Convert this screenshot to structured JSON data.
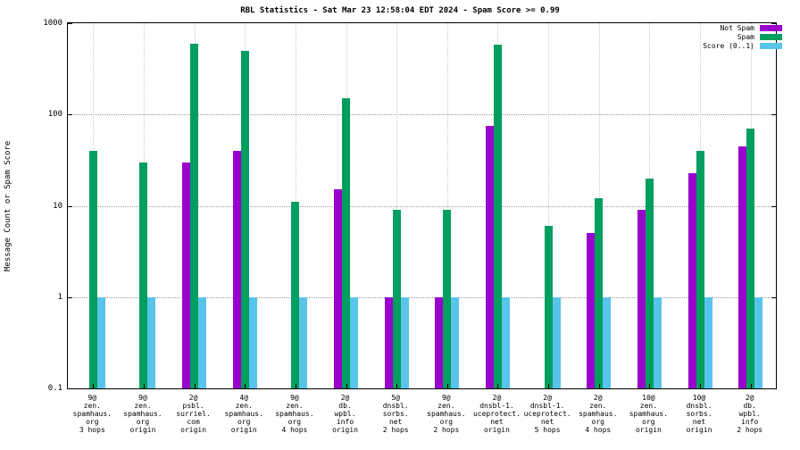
{
  "chart_data": {
    "type": "bar",
    "title": "RBL Statistics - Sat Mar 23 12:58:04 EDT 2024 - Spam Score >= 0.99",
    "ylabel": "Message Count or Spam Score",
    "xlabel": "",
    "y_scale": "log",
    "ylim": [
      0.1,
      1000
    ],
    "yticks": [
      1000,
      100,
      10,
      1,
      0.1
    ],
    "grid_y": [
      1,
      10,
      100
    ],
    "grid": true,
    "legend_position": "top-right",
    "categories": [
      [
        "9@",
        "zen.",
        "spamhaus.",
        "org",
        "3 hops"
      ],
      [
        "9@",
        "zen.",
        "spamhaus.",
        "org",
        "origin"
      ],
      [
        "2@",
        "psbl.",
        "surriel.",
        "com",
        "origin"
      ],
      [
        "4@",
        "zen.",
        "spamhaus.",
        "org",
        "origin"
      ],
      [
        "9@",
        "zen.",
        "spamhaus.",
        "org",
        "4 hops"
      ],
      [
        "2@",
        "db.",
        "wpbl.",
        "info",
        "origin"
      ],
      [
        "5@",
        "dnsbl.",
        "sorbs.",
        "net",
        "2 hops"
      ],
      [
        "9@",
        "zen.",
        "spamhaus.",
        "org",
        "2 hops"
      ],
      [
        "2@",
        "dnsbl-1.",
        "uceprotect.",
        "net",
        "origin"
      ],
      [
        "2@",
        "dnsbl-1.",
        "uceprotect.",
        "net",
        "5 hops"
      ],
      [
        "2@",
        "zen.",
        "spamhaus.",
        "org",
        "4 hops"
      ],
      [
        "10@",
        "zen.",
        "spamhaus.",
        "org",
        "origin"
      ],
      [
        "10@",
        "dnsbl.",
        "sorbs.",
        "net",
        "origin"
      ],
      [
        "2@",
        "db.",
        "wpbl.",
        "info",
        "2 hops"
      ]
    ],
    "series": [
      {
        "name": "Not Spam",
        "color": "#9900cc",
        "values": [
          null,
          null,
          30,
          40,
          null,
          15,
          1,
          1,
          75,
          null,
          5,
          9,
          23,
          45
        ]
      },
      {
        "name": "Spam",
        "color": "#009e60",
        "values": [
          40,
          30,
          600,
          500,
          11,
          150,
          9,
          9,
          580,
          6,
          12,
          20,
          40,
          70
        ]
      },
      {
        "name": "Score (0..1)",
        "color": "#59c4ea",
        "values": [
          1,
          1,
          1,
          1,
          1,
          1,
          1,
          1,
          1,
          1,
          1,
          1,
          1,
          1
        ]
      }
    ]
  }
}
